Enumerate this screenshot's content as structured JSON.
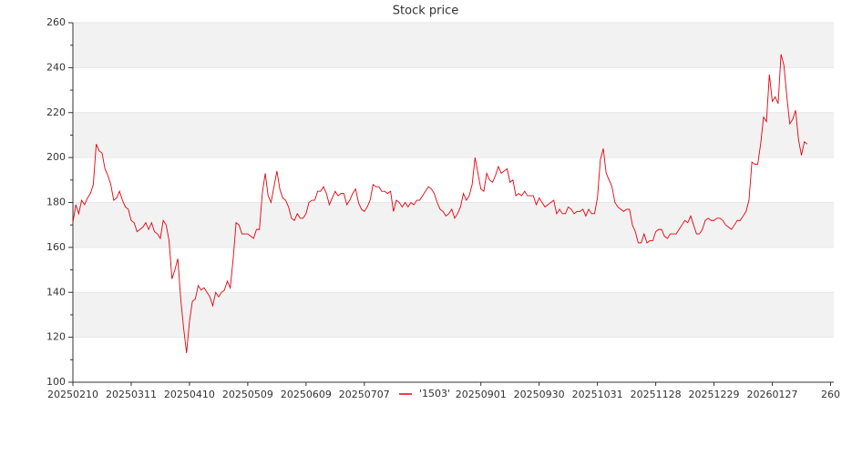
{
  "chart_data": {
    "type": "line",
    "title": "Stock price",
    "categories": [
      "20250210",
      null,
      null,
      null,
      null,
      null,
      null,
      null,
      null,
      null,
      null,
      null,
      null,
      null,
      null,
      null,
      null,
      null,
      null,
      null,
      "20250311",
      null,
      null,
      null,
      null,
      null,
      null,
      null,
      null,
      null,
      null,
      null,
      null,
      null,
      null,
      null,
      null,
      null,
      null,
      null,
      "20250410",
      null,
      null,
      null,
      null,
      null,
      null,
      null,
      null,
      null,
      null,
      null,
      null,
      null,
      null,
      null,
      null,
      null,
      null,
      null,
      "20250509",
      null,
      null,
      null,
      null,
      null,
      null,
      null,
      null,
      null,
      null,
      null,
      null,
      null,
      null,
      null,
      null,
      null,
      null,
      null,
      "20250609",
      null,
      null,
      null,
      null,
      null,
      null,
      null,
      null,
      null,
      null,
      null,
      null,
      null,
      null,
      null,
      null,
      null,
      null,
      null,
      "20250707",
      null,
      null,
      null,
      null,
      null,
      null,
      null,
      null,
      null,
      null,
      null,
      null,
      null,
      null,
      null,
      null,
      null,
      null,
      null,
      null,
      null,
      null,
      null,
      null,
      null,
      null,
      null,
      null,
      null,
      null,
      null,
      null,
      null,
      null,
      null,
      null,
      null,
      null,
      null,
      "20250901",
      null,
      null,
      null,
      null,
      null,
      null,
      null,
      null,
      null,
      null,
      null,
      null,
      null,
      null,
      null,
      null,
      null,
      null,
      null,
      "20250930",
      null,
      null,
      null,
      null,
      null,
      null,
      null,
      null,
      null,
      null,
      null,
      null,
      null,
      null,
      null,
      null,
      null,
      null,
      null,
      "20251031",
      null,
      null,
      null,
      null,
      null,
      null,
      null,
      null,
      null,
      null,
      null,
      null,
      null,
      null,
      null,
      null,
      null,
      null,
      null,
      "20251128",
      null,
      null,
      null,
      null,
      null,
      null,
      null,
      null,
      null,
      null,
      null,
      null,
      null,
      null,
      null,
      null,
      null,
      null,
      null,
      "20251229",
      null,
      null,
      null,
      null,
      null,
      null,
      null,
      null,
      null,
      null,
      null,
      null,
      null,
      null,
      null,
      null,
      null,
      null,
      null,
      "20260127",
      null,
      null,
      null,
      null,
      null,
      null,
      null,
      null,
      null,
      null,
      null,
      null,
      null,
      null,
      null,
      null,
      null,
      null,
      null,
      "260"
    ],
    "series": [
      {
        "name": "'1503'",
        "color": "#e8000b",
        "values": [
          171,
          179,
          175,
          181,
          179,
          182,
          184,
          188,
          206,
          203,
          202,
          195,
          192,
          188,
          181,
          182,
          185,
          181,
          178,
          177,
          172,
          171,
          167,
          168,
          169,
          171,
          168,
          171,
          167,
          166,
          164,
          172,
          170,
          163,
          146,
          150,
          155,
          137,
          124,
          113,
          127,
          136,
          137,
          143,
          141,
          142,
          140,
          138,
          134,
          140,
          138,
          140,
          141,
          145,
          142,
          155,
          171,
          170,
          166,
          166,
          166,
          165,
          164,
          168,
          168,
          184,
          193,
          183,
          180,
          187,
          194,
          186,
          182,
          181,
          178,
          173,
          172,
          175,
          173,
          173,
          175,
          180,
          181,
          181,
          185,
          185,
          187,
          184,
          179,
          182,
          185,
          183,
          184,
          184,
          179,
          181,
          184,
          186,
          180,
          177,
          176,
          178,
          181,
          188,
          187,
          187,
          185,
          185,
          184,
          185,
          176,
          181,
          180,
          178,
          180,
          178,
          180,
          179,
          181,
          181,
          183,
          185,
          187,
          186,
          184,
          180,
          177,
          176,
          174,
          175,
          177,
          173,
          175,
          178,
          184,
          181,
          183,
          188,
          200,
          193,
          186,
          185,
          193,
          190,
          189,
          192,
          196,
          193,
          194,
          195,
          189,
          190,
          183,
          184,
          183,
          185,
          183,
          183,
          183,
          179,
          182,
          180,
          178,
          179,
          180,
          181,
          175,
          177,
          175,
          175,
          178,
          177,
          175,
          176,
          176,
          177,
          174,
          177,
          175,
          175,
          182,
          199,
          204,
          193,
          190,
          187,
          180,
          178,
          177,
          176,
          177,
          177,
          170,
          167,
          162,
          162,
          166,
          162,
          163,
          163,
          167,
          168,
          168,
          165,
          164,
          166,
          166,
          166,
          168,
          170,
          172,
          171,
          174,
          170,
          166,
          166,
          168,
          172,
          173,
          172,
          172,
          173,
          173,
          172,
          170,
          169,
          168,
          170,
          172,
          172,
          174,
          176,
          181,
          198,
          197,
          197,
          206,
          218,
          216,
          237,
          225,
          227,
          224,
          246,
          241,
          227,
          215,
          217,
          221,
          208,
          201,
          207,
          206,
          null,
          null,
          null,
          null,
          null,
          null,
          null,
          null
        ]
      }
    ],
    "ylim": [
      100,
      260
    ],
    "yticks": [
      100,
      120,
      140,
      160,
      180,
      200,
      220,
      240,
      260
    ],
    "grid": true,
    "legend": "bottom"
  }
}
